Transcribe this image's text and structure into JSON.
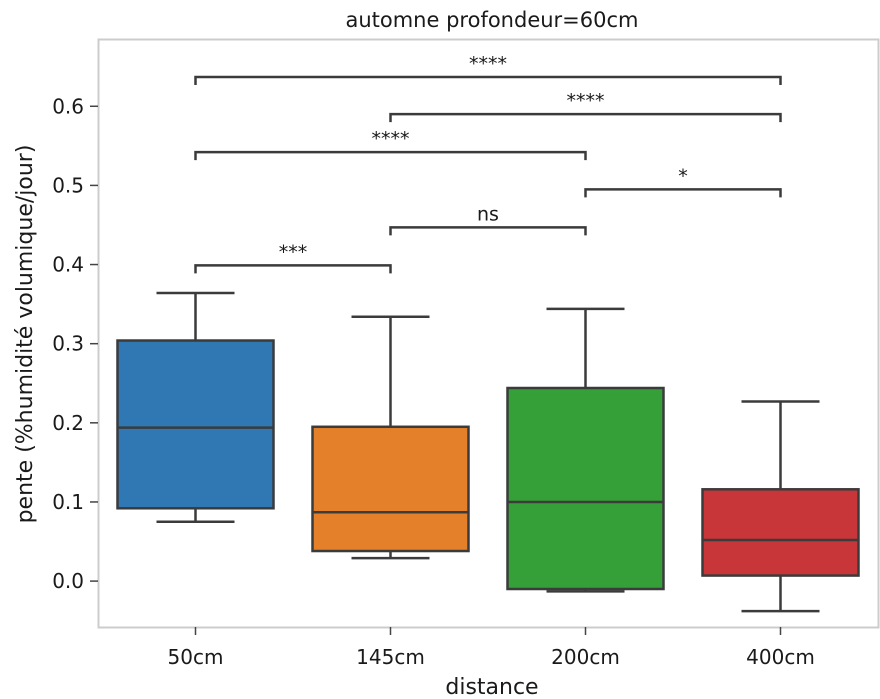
{
  "chart_data": {
    "type": "box",
    "title": "automne profondeur=60cm",
    "xlabel": "distance",
    "ylabel": "pente (%humidité volumique/jour)",
    "categories": [
      "50cm",
      "145cm",
      "200cm",
      "400cm"
    ],
    "ylim": [
      -0.058,
      0.685
    ],
    "yticks": [
      "0.0",
      "0.1",
      "0.2",
      "0.3",
      "0.4",
      "0.5",
      "0.6"
    ],
    "colors": [
      "#2f78b4",
      "#e5802a",
      "#35a038",
      "#c9363a"
    ],
    "boxes": [
      {
        "category": "50cm",
        "whisker_low": 0.075,
        "q1": 0.092,
        "median": 0.194,
        "q3": 0.304,
        "whisker_high": 0.364
      },
      {
        "category": "145cm",
        "whisker_low": 0.029,
        "q1": 0.038,
        "median": 0.087,
        "q3": 0.195,
        "whisker_high": 0.334
      },
      {
        "category": "200cm",
        "whisker_low": -0.013,
        "q1": -0.01,
        "median": 0.1,
        "q3": 0.244,
        "whisker_high": 0.344
      },
      {
        "category": "400cm",
        "whisker_low": -0.038,
        "q1": 0.007,
        "median": 0.052,
        "q3": 0.116,
        "whisker_high": 0.227
      }
    ],
    "significance": [
      {
        "from": 0,
        "to": 1,
        "y": 0.399,
        "label": "***"
      },
      {
        "from": 1,
        "to": 2,
        "y": 0.447,
        "label": "ns"
      },
      {
        "from": 2,
        "to": 3,
        "y": 0.495,
        "label": "*"
      },
      {
        "from": 0,
        "to": 2,
        "y": 0.542,
        "label": "****"
      },
      {
        "from": 1,
        "to": 3,
        "y": 0.59,
        "label": "****"
      },
      {
        "from": 0,
        "to": 3,
        "y": 0.637,
        "label": "****"
      }
    ],
    "grid": false,
    "legend": false
  }
}
